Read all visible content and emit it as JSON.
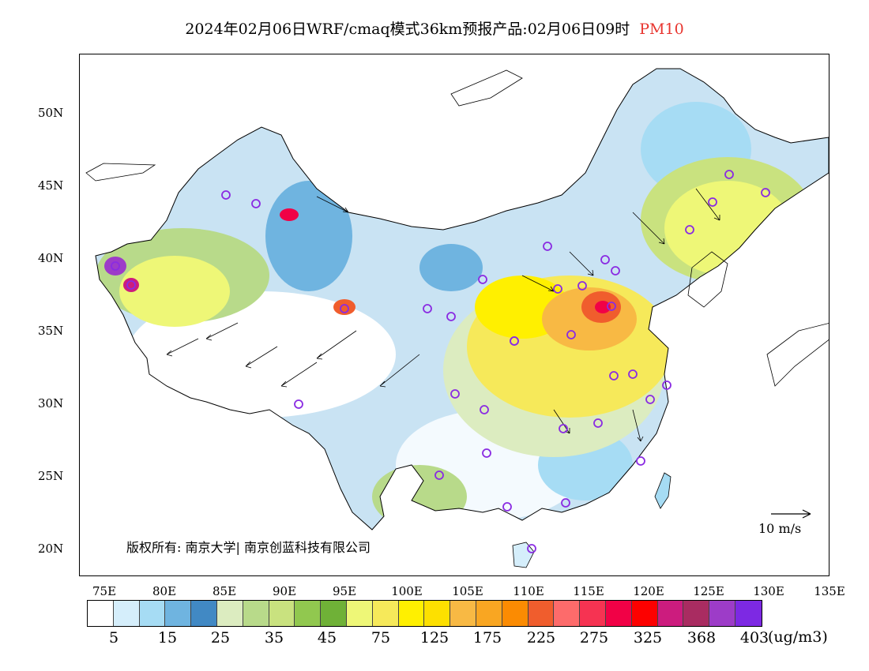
{
  "title": {
    "main": "2024年02月06日WRF/cmaq模式36km预报产品:02月06日09时",
    "pollutant": "PM10"
  },
  "lat_labels": [
    "50N",
    "45N",
    "40N",
    "35N",
    "30N",
    "25N",
    "20N"
  ],
  "lon_labels": [
    "75E",
    "80E",
    "85E",
    "90E",
    "95E",
    "100E",
    "105E",
    "110E",
    "115E",
    "120E",
    "125E",
    "130E",
    "135E"
  ],
  "colorbar": {
    "colors": [
      "#ffffff",
      "#d5eefb",
      "#a6dcf4",
      "#6fb4e0",
      "#4189c4",
      "#dcecc0",
      "#b8da8a",
      "#c9e27f",
      "#91c84f",
      "#6fb137",
      "#eef777",
      "#f6e95a",
      "#fff000",
      "#fde000",
      "#f8b944",
      "#f9a622",
      "#fb8b02",
      "#f05d2d",
      "#fd6b6b",
      "#f63352",
      "#f10146",
      "#fd0100",
      "#cc1c7e",
      "#a92c61",
      "#9d3cc8",
      "#7d29e3"
    ],
    "labels": [
      "5",
      "15",
      "25",
      "35",
      "45",
      "75",
      "125",
      "175",
      "225",
      "275",
      "325",
      "368",
      "403"
    ],
    "unit": "(ug/m3)"
  },
  "copyright": "版权所有: 南京大学| 南京创蓝科技有限公司",
  "wind_scale": "10 m/s",
  "colors": {
    "title_accent": "#e8352f",
    "station_marker": "#8a2be2",
    "border": "#000000"
  }
}
